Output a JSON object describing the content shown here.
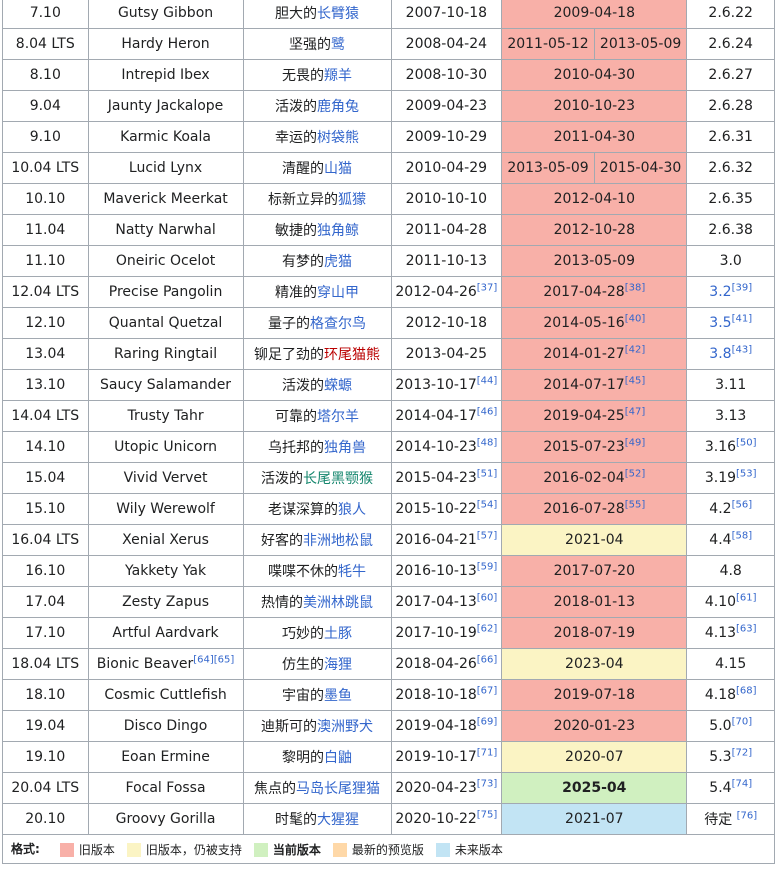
{
  "rows": [
    {
      "version": "7.10",
      "codename": "Gutsy Gibbon",
      "codename_sup": "",
      "zh_plain": "胆大的",
      "zh_link": "长臂猿",
      "zh_link_color": "blue",
      "release": "2007-10-18",
      "release_sup": "",
      "eol": "2009-04-18",
      "eol_sup": "",
      "eol_status": "old",
      "eol2": "",
      "kernel": "2.6.22",
      "kernel_sup": "",
      "kernel_link": false
    },
    {
      "version": "8.04 LTS",
      "codename": "Hardy Heron",
      "codename_sup": "",
      "zh_plain": "坚强的",
      "zh_link": "鹭",
      "zh_link_color": "blue",
      "release": "2008-04-24",
      "release_sup": "",
      "eol": "2011-05-12",
      "eol_sup": "",
      "eol_status": "old",
      "eol2": "2013-05-09",
      "kernel": "2.6.24",
      "kernel_sup": "",
      "kernel_link": false
    },
    {
      "version": "8.10",
      "codename": "Intrepid Ibex",
      "codename_sup": "",
      "zh_plain": "无畏的",
      "zh_link": "羱羊",
      "zh_link_color": "blue",
      "release": "2008-10-30",
      "release_sup": "",
      "eol": "2010-04-30",
      "eol_sup": "",
      "eol_status": "old",
      "eol2": "",
      "kernel": "2.6.27",
      "kernel_sup": "",
      "kernel_link": false
    },
    {
      "version": "9.04",
      "codename": "Jaunty Jackalope",
      "codename_sup": "",
      "zh_plain": "活泼的",
      "zh_link": "鹿角兔",
      "zh_link_color": "blue",
      "release": "2009-04-23",
      "release_sup": "",
      "eol": "2010-10-23",
      "eol_sup": "",
      "eol_status": "old",
      "eol2": "",
      "kernel": "2.6.28",
      "kernel_sup": "",
      "kernel_link": false
    },
    {
      "version": "9.10",
      "codename": "Karmic Koala",
      "codename_sup": "",
      "zh_plain": "幸运的",
      "zh_link": "树袋熊",
      "zh_link_color": "blue",
      "release": "2009-10-29",
      "release_sup": "",
      "eol": "2011-04-30",
      "eol_sup": "",
      "eol_status": "old",
      "eol2": "",
      "kernel": "2.6.31",
      "kernel_sup": "",
      "kernel_link": false
    },
    {
      "version": "10.04 LTS",
      "codename": "Lucid Lynx",
      "codename_sup": "",
      "zh_plain": "清醒的",
      "zh_link": "山猫",
      "zh_link_color": "blue",
      "release": "2010-04-29",
      "release_sup": "",
      "eol": "2013-05-09",
      "eol_sup": "",
      "eol_status": "old",
      "eol2": "2015-04-30",
      "kernel": "2.6.32",
      "kernel_sup": "",
      "kernel_link": false
    },
    {
      "version": "10.10",
      "codename": "Maverick Meerkat",
      "codename_sup": "",
      "zh_plain": "标新立异的",
      "zh_link": "狐獴",
      "zh_link_color": "blue",
      "release": "2010-10-10",
      "release_sup": "",
      "eol": "2012-04-10",
      "eol_sup": "",
      "eol_status": "old",
      "eol2": "",
      "kernel": "2.6.35",
      "kernel_sup": "",
      "kernel_link": false
    },
    {
      "version": "11.04",
      "codename": "Natty Narwhal",
      "codename_sup": "",
      "zh_plain": "敏捷的",
      "zh_link": "独角鲸",
      "zh_link_color": "blue",
      "release": "2011-04-28",
      "release_sup": "",
      "eol": "2012-10-28",
      "eol_sup": "",
      "eol_status": "old",
      "eol2": "",
      "kernel": "2.6.38",
      "kernel_sup": "",
      "kernel_link": false
    },
    {
      "version": "11.10",
      "codename": "Oneiric Ocelot",
      "codename_sup": "",
      "zh_plain": "有梦的",
      "zh_link": "虎猫",
      "zh_link_color": "blue",
      "release": "2011-10-13",
      "release_sup": "",
      "eol": "2013-05-09",
      "eol_sup": "",
      "eol_status": "old",
      "eol2": "",
      "kernel": "3.0",
      "kernel_sup": "",
      "kernel_link": false
    },
    {
      "version": "12.04 LTS",
      "codename": "Precise Pangolin",
      "codename_sup": "",
      "zh_plain": "精准的",
      "zh_link": "穿山甲",
      "zh_link_color": "blue",
      "release": "2012-04-26",
      "release_sup": "[37]",
      "eol": "2017-04-28",
      "eol_sup": "[38]",
      "eol_status": "old",
      "eol2": "",
      "kernel": "3.2",
      "kernel_sup": "[39]",
      "kernel_link": true
    },
    {
      "version": "12.10",
      "codename": "Quantal Quetzal",
      "codename_sup": "",
      "zh_plain": "量子的",
      "zh_link": "格查尔鸟",
      "zh_link_color": "blue",
      "release": "2012-10-18",
      "release_sup": "",
      "eol": "2014-05-16",
      "eol_sup": "[40]",
      "eol_status": "old",
      "eol2": "",
      "kernel": "3.5",
      "kernel_sup": "[41]",
      "kernel_link": true
    },
    {
      "version": "13.04",
      "codename": "Raring Ringtail",
      "codename_sup": "",
      "zh_plain": "铆足了劲的",
      "zh_link": "环尾猫熊",
      "zh_link_color": "red",
      "release": "2013-04-25",
      "release_sup": "",
      "eol": "2014-01-27",
      "eol_sup": "[42]",
      "eol_status": "old",
      "eol2": "",
      "kernel": "3.8",
      "kernel_sup": "[43]",
      "kernel_link": true
    },
    {
      "version": "13.10",
      "codename": "Saucy Salamander",
      "codename_sup": "",
      "zh_plain": "活泼的",
      "zh_link": "蝾螈",
      "zh_link_color": "blue",
      "release": "2013-10-17",
      "release_sup": "[44]",
      "eol": "2014-07-17",
      "eol_sup": "[45]",
      "eol_status": "old",
      "eol2": "",
      "kernel": "3.11",
      "kernel_sup": "",
      "kernel_link": false
    },
    {
      "version": "14.04 LTS",
      "codename": "Trusty Tahr",
      "codename_sup": "",
      "zh_plain": "可靠的",
      "zh_link": "塔尔羊",
      "zh_link_color": "blue",
      "release": "2014-04-17",
      "release_sup": "[46]",
      "eol": "2019-04-25",
      "eol_sup": "[47]",
      "eol_status": "old",
      "eol2": "",
      "kernel": "3.13",
      "kernel_sup": "",
      "kernel_link": false
    },
    {
      "version": "14.10",
      "codename": "Utopic Unicorn",
      "codename_sup": "",
      "zh_plain": "乌托邦的",
      "zh_link": "独角兽",
      "zh_link_color": "blue",
      "release": "2014-10-23",
      "release_sup": "[48]",
      "eol": "2015-07-23",
      "eol_sup": "[49]",
      "eol_status": "old",
      "eol2": "",
      "kernel": "3.16",
      "kernel_sup": "[50]",
      "kernel_link": false
    },
    {
      "version": "15.04",
      "codename": "Vivid Vervet",
      "codename_sup": "",
      "zh_plain": "活泼的",
      "zh_link": "长尾黑颚猴",
      "zh_link_color": "green",
      "release": "2015-04-23",
      "release_sup": "[51]",
      "eol": "2016-02-04",
      "eol_sup": "[52]",
      "eol_status": "old",
      "eol2": "",
      "kernel": "3.19",
      "kernel_sup": "[53]",
      "kernel_link": false
    },
    {
      "version": "15.10",
      "codename": "Wily Werewolf",
      "codename_sup": "",
      "zh_plain": "老谋深算的",
      "zh_link": "狼人",
      "zh_link_color": "blue",
      "release": "2015-10-22",
      "release_sup": "[54]",
      "eol": "2016-07-28",
      "eol_sup": "[55]",
      "eol_status": "old",
      "eol2": "",
      "kernel": "4.2",
      "kernel_sup": "[56]",
      "kernel_link": false
    },
    {
      "version": "16.04 LTS",
      "codename": "Xenial Xerus",
      "codename_sup": "",
      "zh_plain": "好客的",
      "zh_link": "非洲地松鼠",
      "zh_link_color": "blue",
      "release": "2016-04-21",
      "release_sup": "[57]",
      "eol": "2021-04",
      "eol_sup": "",
      "eol_status": "sup",
      "eol2": "",
      "kernel": "4.4",
      "kernel_sup": "[58]",
      "kernel_link": false
    },
    {
      "version": "16.10",
      "codename": "Yakkety Yak",
      "codename_sup": "",
      "zh_plain": "喋喋不休的",
      "zh_link": "牦牛",
      "zh_link_color": "blue",
      "release": "2016-10-13",
      "release_sup": "[59]",
      "eol": "2017-07-20",
      "eol_sup": "",
      "eol_status": "old",
      "eol2": "",
      "kernel": "4.8",
      "kernel_sup": "",
      "kernel_link": false
    },
    {
      "version": "17.04",
      "codename": "Zesty Zapus",
      "codename_sup": "",
      "zh_plain": "热情的",
      "zh_link": "美洲林跳鼠",
      "zh_link_color": "blue",
      "release": "2017-04-13",
      "release_sup": "[60]",
      "eol": "2018-01-13",
      "eol_sup": "",
      "eol_status": "old",
      "eol2": "",
      "kernel": "4.10",
      "kernel_sup": "[61]",
      "kernel_link": false
    },
    {
      "version": "17.10",
      "codename": "Artful Aardvark",
      "codename_sup": "",
      "zh_plain": "巧妙的",
      "zh_link": "土豚",
      "zh_link_color": "blue",
      "release": "2017-10-19",
      "release_sup": "[62]",
      "eol": "2018-07-19",
      "eol_sup": "",
      "eol_status": "old",
      "eol2": "",
      "kernel": "4.13",
      "kernel_sup": "[63]",
      "kernel_link": false
    },
    {
      "version": "18.04 LTS",
      "codename": "Bionic Beaver",
      "codename_sup": "[64][65]",
      "zh_plain": "仿生的",
      "zh_link": "海狸",
      "zh_link_color": "blue",
      "release": "2018-04-26",
      "release_sup": "[66]",
      "eol": "2023-04",
      "eol_sup": "",
      "eol_status": "sup",
      "eol2": "",
      "kernel": "4.15",
      "kernel_sup": "",
      "kernel_link": false
    },
    {
      "version": "18.10",
      "codename": "Cosmic Cuttlefish",
      "codename_sup": "",
      "zh_plain": "宇宙的",
      "zh_link": "墨鱼",
      "zh_link_color": "blue",
      "release": "2018-10-18",
      "release_sup": "[67]",
      "eol": "2019-07-18",
      "eol_sup": "",
      "eol_status": "old",
      "eol2": "",
      "kernel": "4.18",
      "kernel_sup": "[68]",
      "kernel_link": false
    },
    {
      "version": "19.04",
      "codename": "Disco Dingo",
      "codename_sup": "",
      "zh_plain": "迪斯可的",
      "zh_link": "澳洲野犬",
      "zh_link_color": "blue",
      "release": "2019-04-18",
      "release_sup": "[69]",
      "eol": "2020-01-23",
      "eol_sup": "",
      "eol_status": "old",
      "eol2": "",
      "kernel": "5.0",
      "kernel_sup": "[70]",
      "kernel_link": false
    },
    {
      "version": "19.10",
      "codename": "Eoan Ermine",
      "codename_sup": "",
      "zh_plain": "黎明的",
      "zh_link": "白鼬",
      "zh_link_color": "blue",
      "release": "2019-10-17",
      "release_sup": "[71]",
      "eol": "2020-07",
      "eol_sup": "",
      "eol_status": "sup",
      "eol2": "",
      "kernel": "5.3",
      "kernel_sup": "[72]",
      "kernel_link": false
    },
    {
      "version": "20.04 LTS",
      "codename": "Focal Fossa",
      "codename_sup": "",
      "zh_plain": "焦点的",
      "zh_link": "马岛长尾狸猫",
      "zh_link_color": "blue",
      "release": "2020-04-23",
      "release_sup": "[73]",
      "eol": "2025-04",
      "eol_sup": "",
      "eol_status": "cur",
      "eol2": "",
      "kernel": "5.4",
      "kernel_sup": "[74]",
      "kernel_link": false
    },
    {
      "version": "20.10",
      "codename": "Groovy Gorilla",
      "codename_sup": "",
      "zh_plain": "时髦的",
      "zh_link": "大猩猩",
      "zh_link_color": "blue",
      "release": "2020-10-22",
      "release_sup": "[75]",
      "eol": "2021-07",
      "eol_sup": "",
      "eol_status": "fut",
      "eol2": "",
      "kernel": "待定 ",
      "kernel_sup": "[76]",
      "kernel_link": false
    }
  ],
  "legend": {
    "title": "格式:",
    "items": [
      {
        "label": "旧版本",
        "color": "#f8b0a8",
        "bold": false
      },
      {
        "label": "旧版本，仍被支持",
        "color": "#fbf4c4",
        "bold": false
      },
      {
        "label": "当前版本",
        "color": "#d0f0c0",
        "bold": true
      },
      {
        "label": "最新的预览版",
        "color": "#fed8a8",
        "bold": false
      },
      {
        "label": "未来版本",
        "color": "#c2e4f4",
        "bold": false
      }
    ]
  }
}
